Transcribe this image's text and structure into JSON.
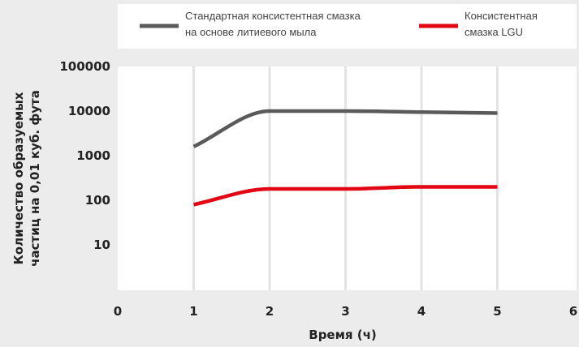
{
  "colors": {
    "background": "#ececec",
    "plot_background": "#ffffff",
    "grid": "#e3e3e3",
    "series_gray": "#5a5a5a",
    "series_red": "#e30613"
  },
  "chart_data": {
    "type": "line",
    "title": "",
    "xlabel": "Время (ч)",
    "ylabel_lines": [
      "Количество образуемых",
      "частиц на 0,01 куб. фута"
    ],
    "x_ticks": [
      "0",
      "1",
      "2",
      "3",
      "4",
      "5",
      "6"
    ],
    "y_ticks": [
      "10",
      "100",
      "1000",
      "10000",
      "100000"
    ],
    "y_scale": "log",
    "xlim": [
      0,
      6
    ],
    "ylim": [
      1,
      100000
    ],
    "grid": "vertical",
    "legend_position": "top",
    "series": [
      {
        "name_lines": [
          "Стандартная консистентная смазка",
          "на основе литиевого мыла"
        ],
        "color": "#5a5a5a",
        "x": [
          1,
          2,
          3,
          4,
          5
        ],
        "y": [
          1600,
          10000,
          10000,
          9500,
          9000
        ]
      },
      {
        "name_lines": [
          "Консистентная",
          "смазка LGU"
        ],
        "color": "#e30613",
        "x": [
          1,
          2,
          3,
          4,
          5
        ],
        "y": [
          80,
          180,
          180,
          200,
          200
        ]
      }
    ]
  }
}
